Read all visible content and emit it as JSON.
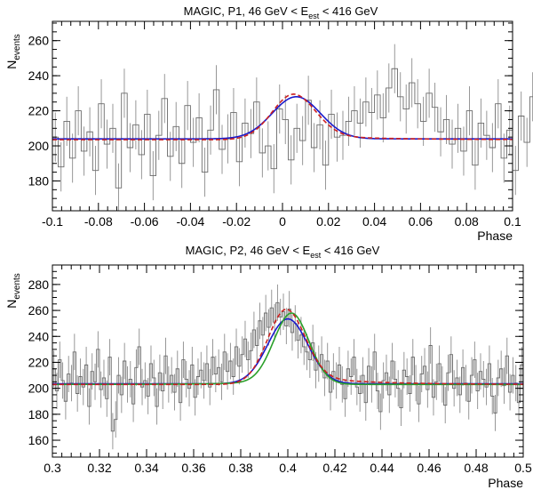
{
  "chart_data": [
    {
      "type": "line",
      "title_main": "MAGIC, P1, 46 GeV < E",
      "title_sub": "est",
      "title_tail": " < 416 GeV",
      "xlabel": "Phase",
      "ylabel_main": "N",
      "ylabel_sub": "events",
      "xlim": [
        -0.1,
        0.1
      ],
      "ylim": [
        163,
        271
      ],
      "xticks": [
        "-0.1",
        "-0.08",
        "-0.06",
        "-0.04",
        "-0.02",
        "0",
        "0.02",
        "0.04",
        "0.06",
        "0.08",
        "0.1"
      ],
      "xtick_values": [
        -0.1,
        -0.08,
        -0.06,
        -0.04,
        -0.02,
        0,
        0.02,
        0.04,
        0.06,
        0.08,
        0.1
      ],
      "yticks": [
        "180",
        "200",
        "220",
        "240",
        "260"
      ],
      "ytick_values": [
        180,
        200,
        220,
        240,
        260
      ],
      "histogram": {
        "bin_width": 0.0025,
        "error": 14,
        "values": [
          205,
          188,
          214,
          193,
          220,
          197,
          208,
          186,
          224,
          201,
          210,
          176,
          230,
          199,
          212,
          195,
          218,
          183,
          206,
          227,
          194,
          211,
          190,
          223,
          202,
          216,
          185,
          209,
          232,
          198,
          204,
          219,
          191,
          213,
          207,
          225,
          196,
          200,
          187,
          221,
          215,
          192,
          210,
          203,
          226,
          199,
          212,
          189,
          218,
          205,
          206,
          214,
          220,
          213,
          225,
          219,
          229,
          216,
          233,
          244,
          228,
          221,
          236,
          224,
          214,
          230,
          222,
          208,
          215,
          201,
          210,
          197,
          220,
          189,
          213,
          206,
          199,
          224,
          193,
          209,
          186,
          217,
          202,
          228,
          195,
          211,
          205,
          221,
          190,
          204,
          214,
          198,
          231,
          192,
          208,
          219,
          188,
          210,
          223,
          201,
          196,
          212,
          205,
          218,
          193,
          225,
          200,
          186,
          214,
          207,
          203,
          220,
          197,
          209,
          236,
          191,
          204,
          216,
          199,
          211,
          195,
          224,
          202,
          189,
          213,
          206,
          218,
          192,
          208,
          215,
          200,
          197,
          222,
          205,
          183,
          212,
          226,
          198,
          209,
          194,
          217,
          203,
          188,
          221,
          207,
          199,
          214,
          201,
          231,
          196,
          210,
          204,
          193,
          219,
          206,
          200,
          212,
          186,
          216,
          208
        ]
      },
      "fits": [
        {
          "color": "#1a1acc",
          "style": "solid",
          "baseline": 204,
          "amplitude": 24,
          "center": 0.006,
          "sigma": 0.0105,
          "tail": 0,
          "tail_decay": 0.01
        },
        {
          "color": "#cc2020",
          "style": "dashed",
          "baseline": 203.5,
          "amplitude": 23,
          "center": 0.005,
          "sigma": 0.0095,
          "tail": 3,
          "tail_decay": 0.03
        }
      ]
    },
    {
      "type": "line",
      "title_main": "MAGIC, P2, 46 GeV < E",
      "title_sub": "est",
      "title_tail": " < 416 GeV",
      "xlabel": "Phase",
      "ylabel_main": "N",
      "ylabel_sub": "events",
      "xlim": [
        0.3,
        0.5
      ],
      "ylim": [
        147,
        295
      ],
      "xticks": [
        "0.3",
        "0.32",
        "0.34",
        "0.36",
        "0.38",
        "0.4",
        "0.42",
        "0.44",
        "0.46",
        "0.48",
        "0.5"
      ],
      "xtick_values": [
        0.3,
        0.32,
        0.34,
        0.36,
        0.38,
        0.4,
        0.42,
        0.44,
        0.46,
        0.48,
        0.5
      ],
      "yticks": [
        "160",
        "180",
        "200",
        "220",
        "240",
        "260",
        "280"
      ],
      "ytick_values": [
        160,
        180,
        200,
        220,
        240,
        260,
        280
      ],
      "histogram": {
        "bin_width": 0.00125,
        "error": 14,
        "values": [
          215,
          198,
          222,
          206,
          190,
          211,
          204,
          228,
          196,
          209,
          201,
          218,
          186,
          213,
          205,
          230,
          199,
          208,
          192,
          224,
          167,
          176,
          210,
          195,
          221,
          203,
          207,
          188,
          216,
          232,
          201,
          206,
          194,
          219,
          208,
          186,
          212,
          198,
          225,
          203,
          210,
          197,
          215,
          189,
          222,
          207,
          200,
          218,
          193,
          209,
          214,
          206,
          219,
          201,
          224,
          211,
          216,
          205,
          228,
          213,
          221,
          209,
          232,
          217,
          226,
          238,
          222,
          229,
          245,
          233,
          252,
          241,
          258,
          247,
          262,
          251,
          266,
          255,
          259,
          248,
          261,
          243,
          250,
          237,
          241,
          232,
          228,
          222,
          235,
          214,
          219,
          226,
          208,
          221,
          197,
          213,
          206,
          218,
          203,
          192,
          215,
          209,
          224,
          201,
          196,
          210,
          189,
          217,
          203,
          228,
          198,
          182,
          206,
          212,
          195,
          221,
          207,
          200,
          185,
          214,
          209,
          196,
          224,
          204,
          188,
          211,
          217,
          199,
          233,
          193,
          205,
          219,
          203,
          187,
          212,
          226,
          200,
          208,
          195,
          216,
          204,
          190,
          210,
          222,
          198,
          213,
          207,
          201,
          219,
          194,
          181,
          208,
          215,
          202,
          225,
          197,
          210,
          204,
          189,
          218
        ]
      },
      "fits": [
        {
          "color": "#1a1acc",
          "style": "solid",
          "baseline": 203.5,
          "amplitude": 50,
          "center": 0.4,
          "sigma": 0.0085,
          "tail": 0,
          "tail_decay": 0.01
        },
        {
          "color": "#2aa02a",
          "style": "solid",
          "baseline": 203,
          "amplitude": 52,
          "center": 0.4015,
          "sigma": 0.0075,
          "tail": 3,
          "tail_decay": -0.02
        },
        {
          "color": "#cc2020",
          "style": "dashed",
          "baseline": 203,
          "amplitude": 50,
          "center": 0.3995,
          "sigma": 0.008,
          "tail": 8,
          "tail_decay": 0.025
        }
      ]
    }
  ]
}
